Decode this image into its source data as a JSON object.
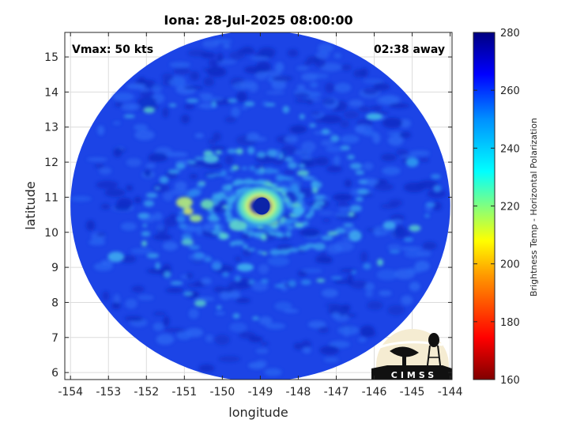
{
  "title": "Iona: 28-Jul-2025 08:00:00",
  "annotations": {
    "vmax": "Vmax: 50 kts",
    "away": "02:38 away"
  },
  "xlabel": "longitude",
  "ylabel": "latitude",
  "x_ticks": [
    "-154",
    "-153",
    "-152",
    "-151",
    "-150",
    "-149",
    "-148",
    "-147",
    "-146",
    "-145",
    "-144"
  ],
  "y_ticks": [
    "15",
    "14",
    "13",
    "12",
    "11",
    "10",
    "9",
    "8",
    "7",
    "6"
  ],
  "colorbar": {
    "label": "Brightness Temp - Horizontal Polarization",
    "ticks": [
      "280",
      "260",
      "240",
      "220",
      "200",
      "180",
      "160"
    ],
    "range": [
      160,
      280
    ],
    "colormap": [
      "#800000",
      "#ff0000",
      "#ff8000",
      "#ffff00",
      "#80ff80",
      "#00ffff",
      "#0080ff",
      "#0000ff",
      "#000080"
    ]
  },
  "map": {
    "xlim": [
      -154.15,
      -143.95
    ],
    "ylim": [
      5.8,
      15.7
    ],
    "swath_center": [
      -149,
      10.75
    ],
    "swath_radius_deg": 5,
    "storm_center": [
      -149,
      10.75
    ],
    "background_color": "#1c44e6",
    "eye_color": "#0c24a8",
    "eyewall_color": "#7fe6a0"
  },
  "logo": {
    "text": "CIMSS"
  }
}
